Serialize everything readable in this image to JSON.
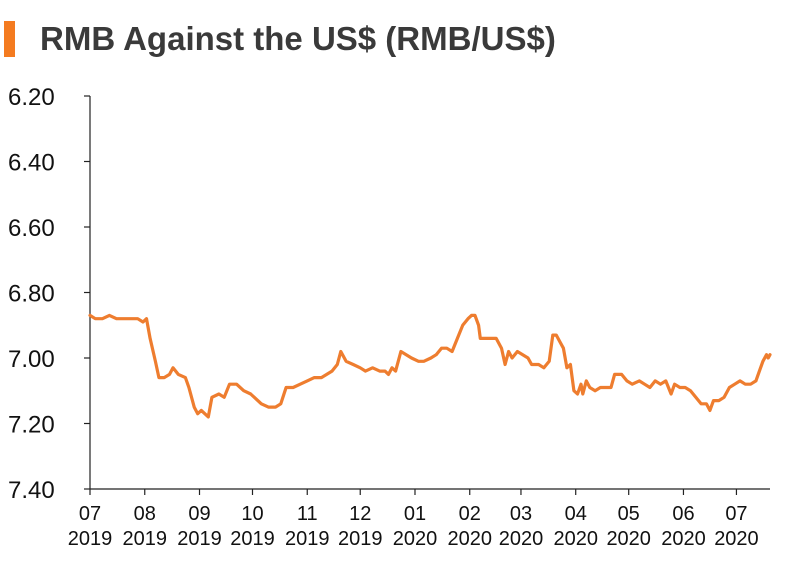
{
  "colors": {
    "accent": "#f47b20",
    "line": "#ee7d2f",
    "axis": "#222222"
  },
  "chart_data": {
    "type": "line",
    "title": "RMB Against the US$ (RMB/US$)",
    "xlabel": "",
    "ylabel": "",
    "y_inverted": true,
    "ylim": [
      6.2,
      7.4
    ],
    "yticks": [
      "6.20",
      "6.40",
      "6.60",
      "6.80",
      "7.00",
      "7.20",
      "7.40"
    ],
    "xlim": [
      "2019-07-01",
      "2020-07-20"
    ],
    "xticks": [
      {
        "date": "2019-07-01",
        "month": "07",
        "year": "2019"
      },
      {
        "date": "2019-08-01",
        "month": "08",
        "year": "2019"
      },
      {
        "date": "2019-09-01",
        "month": "09",
        "year": "2019"
      },
      {
        "date": "2019-10-01",
        "month": "10",
        "year": "2019"
      },
      {
        "date": "2019-11-01",
        "month": "11",
        "year": "2019"
      },
      {
        "date": "2019-12-01",
        "month": "12",
        "year": "2019"
      },
      {
        "date": "2020-01-01",
        "month": "01",
        "year": "2020"
      },
      {
        "date": "2020-02-01",
        "month": "02",
        "year": "2020"
      },
      {
        "date": "2020-03-01",
        "month": "03",
        "year": "2020"
      },
      {
        "date": "2020-04-01",
        "month": "04",
        "year": "2020"
      },
      {
        "date": "2020-05-01",
        "month": "05",
        "year": "2020"
      },
      {
        "date": "2020-06-01",
        "month": "06",
        "year": "2020"
      },
      {
        "date": "2020-07-01",
        "month": "07",
        "year": "2020"
      }
    ],
    "series": [
      {
        "points": [
          [
            "2019-07-01",
            6.87
          ],
          [
            "2019-07-04",
            6.88
          ],
          [
            "2019-07-08",
            6.88
          ],
          [
            "2019-07-12",
            6.87
          ],
          [
            "2019-07-16",
            6.88
          ],
          [
            "2019-07-22",
            6.88
          ],
          [
            "2019-07-28",
            6.88
          ],
          [
            "2019-07-31",
            6.89
          ],
          [
            "2019-08-02",
            6.88
          ],
          [
            "2019-08-04",
            6.94
          ],
          [
            "2019-08-07",
            7.01
          ],
          [
            "2019-08-09",
            7.06
          ],
          [
            "2019-08-12",
            7.06
          ],
          [
            "2019-08-15",
            7.05
          ],
          [
            "2019-08-17",
            7.03
          ],
          [
            "2019-08-20",
            7.05
          ],
          [
            "2019-08-24",
            7.06
          ],
          [
            "2019-08-26",
            7.09
          ],
          [
            "2019-08-29",
            7.15
          ],
          [
            "2019-08-31",
            7.17
          ],
          [
            "2019-09-02",
            7.16
          ],
          [
            "2019-09-04",
            7.17
          ],
          [
            "2019-09-06",
            7.18
          ],
          [
            "2019-09-08",
            7.12
          ],
          [
            "2019-09-12",
            7.11
          ],
          [
            "2019-09-15",
            7.12
          ],
          [
            "2019-09-18",
            7.08
          ],
          [
            "2019-09-22",
            7.08
          ],
          [
            "2019-09-26",
            7.1
          ],
          [
            "2019-09-30",
            7.11
          ],
          [
            "2019-10-04",
            7.13
          ],
          [
            "2019-10-06",
            7.14
          ],
          [
            "2019-10-10",
            7.15
          ],
          [
            "2019-10-14",
            7.15
          ],
          [
            "2019-10-17",
            7.14
          ],
          [
            "2019-10-20",
            7.09
          ],
          [
            "2019-10-24",
            7.09
          ],
          [
            "2019-10-28",
            7.08
          ],
          [
            "2019-11-01",
            7.07
          ],
          [
            "2019-11-05",
            7.06
          ],
          [
            "2019-11-09",
            7.06
          ],
          [
            "2019-11-12",
            7.05
          ],
          [
            "2019-11-15",
            7.04
          ],
          [
            "2019-11-18",
            7.02
          ],
          [
            "2019-11-20",
            6.98
          ],
          [
            "2019-11-23",
            7.01
          ],
          [
            "2019-11-27",
            7.02
          ],
          [
            "2019-12-01",
            7.03
          ],
          [
            "2019-12-04",
            7.04
          ],
          [
            "2019-12-08",
            7.03
          ],
          [
            "2019-12-12",
            7.04
          ],
          [
            "2019-12-15",
            7.04
          ],
          [
            "2019-12-17",
            7.05
          ],
          [
            "2019-12-19",
            7.03
          ],
          [
            "2019-12-21",
            7.04
          ],
          [
            "2019-12-24",
            6.98
          ],
          [
            "2019-12-27",
            6.99
          ],
          [
            "2019-12-30",
            7.0
          ],
          [
            "2020-01-03",
            7.01
          ],
          [
            "2020-01-06",
            7.01
          ],
          [
            "2020-01-10",
            7.0
          ],
          [
            "2020-01-13",
            6.99
          ],
          [
            "2020-01-16",
            6.97
          ],
          [
            "2020-01-19",
            6.97
          ],
          [
            "2020-01-22",
            6.98
          ],
          [
            "2020-01-25",
            6.94
          ],
          [
            "2020-01-28",
            6.9
          ],
          [
            "2020-01-31",
            6.88
          ],
          [
            "2020-02-02",
            6.87
          ],
          [
            "2020-02-04",
            6.87
          ],
          [
            "2020-02-06",
            6.9
          ],
          [
            "2020-02-07",
            6.94
          ],
          [
            "2020-02-12",
            6.94
          ],
          [
            "2020-02-16",
            6.94
          ],
          [
            "2020-02-19",
            6.97
          ],
          [
            "2020-02-21",
            7.02
          ],
          [
            "2020-02-23",
            6.98
          ],
          [
            "2020-02-25",
            7.0
          ],
          [
            "2020-02-28",
            6.98
          ],
          [
            "2020-03-02",
            6.99
          ],
          [
            "2020-03-05",
            7.0
          ],
          [
            "2020-03-07",
            7.02
          ],
          [
            "2020-03-11",
            7.02
          ],
          [
            "2020-03-14",
            7.03
          ],
          [
            "2020-03-17",
            7.01
          ],
          [
            "2020-03-19",
            6.93
          ],
          [
            "2020-03-21",
            6.93
          ],
          [
            "2020-03-23",
            6.95
          ],
          [
            "2020-03-25",
            6.97
          ],
          [
            "2020-03-27",
            7.03
          ],
          [
            "2020-03-29",
            7.02
          ],
          [
            "2020-03-31",
            7.1
          ],
          [
            "2020-04-02",
            7.11
          ],
          [
            "2020-04-04",
            7.08
          ],
          [
            "2020-04-05",
            7.11
          ],
          [
            "2020-04-07",
            7.07
          ],
          [
            "2020-04-09",
            7.09
          ],
          [
            "2020-04-12",
            7.1
          ],
          [
            "2020-04-15",
            7.09
          ],
          [
            "2020-04-19",
            7.09
          ],
          [
            "2020-04-21",
            7.09
          ],
          [
            "2020-04-23",
            7.05
          ],
          [
            "2020-04-27",
            7.05
          ],
          [
            "2020-04-30",
            7.07
          ],
          [
            "2020-05-03",
            7.08
          ],
          [
            "2020-05-07",
            7.07
          ],
          [
            "2020-05-10",
            7.08
          ],
          [
            "2020-05-13",
            7.09
          ],
          [
            "2020-05-16",
            7.07
          ],
          [
            "2020-05-19",
            7.08
          ],
          [
            "2020-05-22",
            7.07
          ],
          [
            "2020-05-25",
            7.11
          ],
          [
            "2020-05-27",
            7.08
          ],
          [
            "2020-05-30",
            7.09
          ],
          [
            "2020-06-02",
            7.09
          ],
          [
            "2020-06-05",
            7.1
          ],
          [
            "2020-06-08",
            7.12
          ],
          [
            "2020-06-11",
            7.14
          ],
          [
            "2020-06-14",
            7.14
          ],
          [
            "2020-06-16",
            7.16
          ],
          [
            "2020-06-18",
            7.13
          ],
          [
            "2020-06-21",
            7.13
          ],
          [
            "2020-06-24",
            7.12
          ],
          [
            "2020-06-27",
            7.09
          ],
          [
            "2020-06-30",
            7.08
          ],
          [
            "2020-07-03",
            7.07
          ],
          [
            "2020-07-06",
            7.08
          ],
          [
            "2020-07-09",
            7.08
          ],
          [
            "2020-07-12",
            7.07
          ],
          [
            "2020-07-14",
            7.04
          ],
          [
            "2020-07-16",
            7.01
          ],
          [
            "2020-07-18",
            6.99
          ],
          [
            "2020-07-19",
            7.0
          ],
          [
            "2020-07-20",
            6.99
          ]
        ]
      }
    ]
  }
}
